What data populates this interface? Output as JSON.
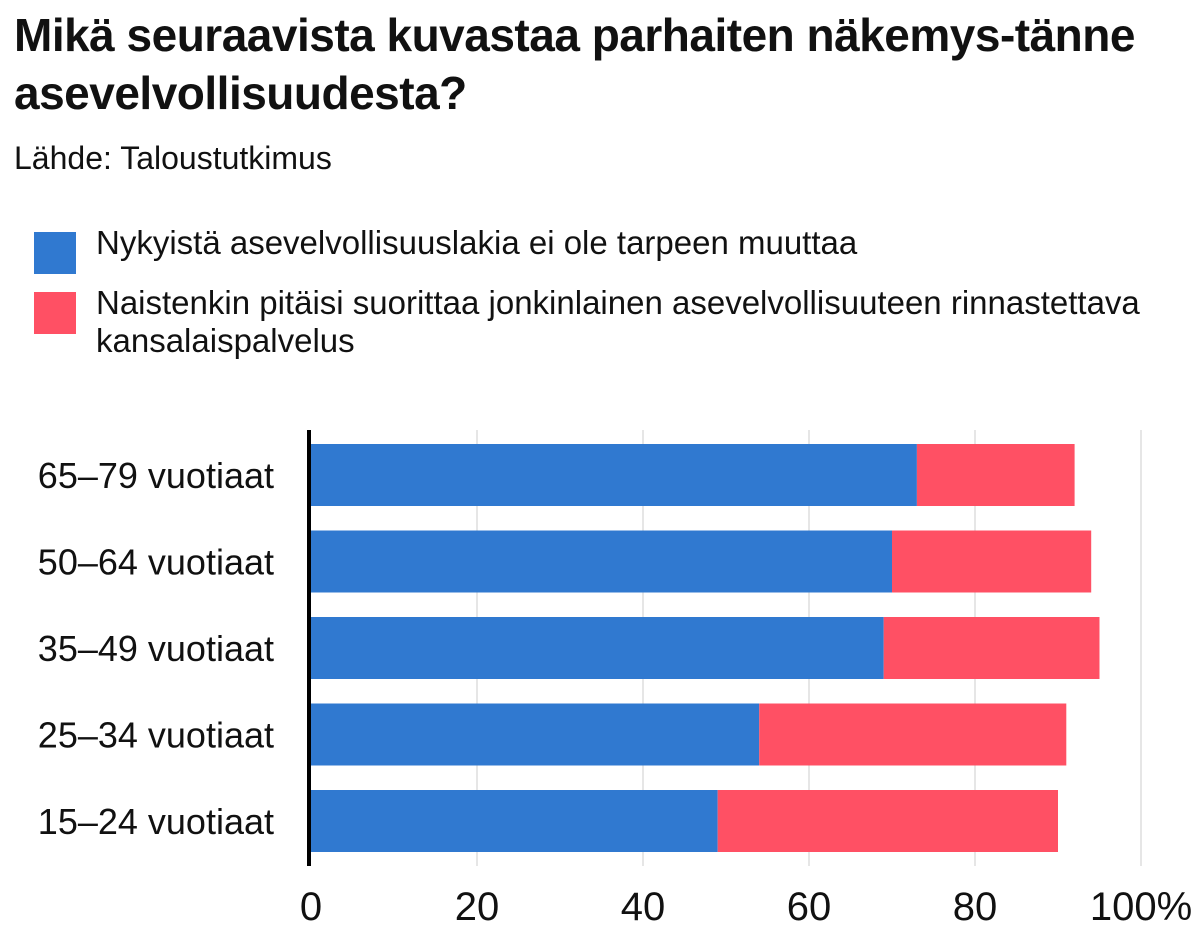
{
  "chart_data": {
    "type": "bar",
    "stacked": true,
    "orientation": "horizontal",
    "title": "Mikä seuraavista kuvastaa parhaiten näkemys-tänne asevelvollisuudesta?",
    "subtitle": "Lähde: Taloustutkimus",
    "categories": [
      "65–79 vuotiaat",
      "50–64 vuotiaat",
      "35–49 vuotiaat",
      "25–34 vuotiaat",
      "15–24 vuotiaat"
    ],
    "series": [
      {
        "name": "Nykyistä asevelvollisuuslakia ei ole tarpeen muuttaa",
        "color": "#3079d0",
        "values": [
          73,
          70,
          69,
          54,
          49
        ]
      },
      {
        "name": "Naistenkin pitäisi suorittaa jonkinlainen asevelvollisuuteen rinnastettava kansalaispalvelus",
        "color": "#ff5064",
        "values": [
          19,
          24,
          26,
          37,
          41
        ]
      }
    ],
    "xlim": [
      0,
      100
    ],
    "xticks": [
      "0",
      "20",
      "40",
      "60",
      "80",
      "100%"
    ],
    "grid": true,
    "legend_position": "top"
  }
}
